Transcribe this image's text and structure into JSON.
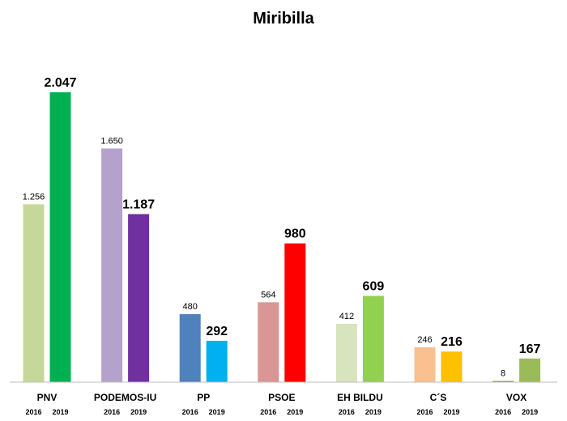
{
  "chart_data": {
    "type": "bar",
    "title": "Miribilla",
    "categories": [
      "PNV",
      "PODEMOS-IU",
      "PP",
      "PSOE",
      "EH BILDU",
      "C´S",
      "VOX"
    ],
    "series": [
      {
        "name": "2016",
        "values": [
          1256,
          1650,
          480,
          564,
          412,
          246,
          8
        ],
        "labels": [
          "1.256",
          "1.650",
          "480",
          "564",
          "412",
          "246",
          "8"
        ],
        "colors": [
          "#c5d89a",
          "#b4a2cc",
          "#4f81bd",
          "#d99694",
          "#d7e4bd",
          "#fac090",
          "#76923c"
        ]
      },
      {
        "name": "2019",
        "values": [
          2047,
          1187,
          292,
          980,
          609,
          216,
          167
        ],
        "labels": [
          "2.047",
          "1.187",
          "292",
          "980",
          "609",
          "216",
          "167"
        ],
        "colors": [
          "#00b050",
          "#7030a0",
          "#00b0f0",
          "#ff0000",
          "#92d050",
          "#ffc000",
          "#9bbb59"
        ]
      }
    ],
    "year_labels": [
      "2016",
      "2019"
    ],
    "ylim": [
      0,
      2150
    ],
    "axis_color": "#bfbfbf",
    "grid": false,
    "legend": "none"
  }
}
